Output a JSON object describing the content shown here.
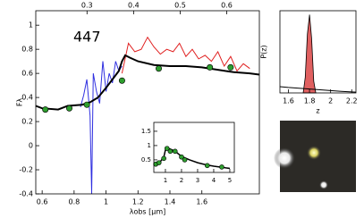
{
  "chart_data": [
    {
      "type": "line",
      "annotation": "447",
      "xlabel": "λobs [μm]",
      "ylabel": "Fλ",
      "xlim": [
        0.56,
        1.96
      ],
      "xticks": [
        0.6,
        0.8,
        1.0,
        1.2,
        1.4,
        1.6
      ],
      "x2lim": [
        0.19,
        0.67
      ],
      "x2ticks": [
        0.3,
        0.4,
        0.5,
        0.6
      ],
      "ylim": [
        -0.4,
        1.12
      ],
      "yticks": [
        -0.4,
        -0.2,
        0.0,
        0.2,
        0.4,
        0.6,
        0.8,
        1.0
      ],
      "series": [
        {
          "style": "line",
          "color": "#3030e0",
          "width": 1,
          "x": [
            0.84,
            0.86,
            0.88,
            0.9,
            0.91,
            0.92,
            0.94,
            0.96,
            0.98,
            1.0,
            1.02,
            1.04,
            1.06,
            1.08,
            1.1
          ],
          "values": [
            0.32,
            0.42,
            0.55,
            0.25,
            -0.4,
            0.6,
            0.45,
            0.35,
            0.7,
            0.45,
            0.6,
            0.52,
            0.7,
            0.62,
            0.66
          ]
        },
        {
          "style": "line",
          "color": "#e02020",
          "width": 1,
          "x": [
            1.1,
            1.14,
            1.18,
            1.22,
            1.26,
            1.3,
            1.34,
            1.38,
            1.42,
            1.46,
            1.5,
            1.54,
            1.58,
            1.62,
            1.66,
            1.7,
            1.74,
            1.78,
            1.82,
            1.86,
            1.9
          ],
          "values": [
            0.6,
            0.85,
            0.78,
            0.8,
            0.9,
            0.82,
            0.76,
            0.8,
            0.78,
            0.85,
            0.74,
            0.8,
            0.72,
            0.75,
            0.7,
            0.78,
            0.66,
            0.74,
            0.62,
            0.68,
            0.64
          ]
        },
        {
          "style": "line",
          "color": "#000000",
          "width": 2,
          "x": [
            0.56,
            0.6,
            0.7,
            0.76,
            0.85,
            0.9,
            0.95,
            1.0,
            1.04,
            1.08,
            1.1,
            1.12,
            1.15,
            1.2,
            1.3,
            1.4,
            1.5,
            1.6,
            1.7,
            1.8,
            1.9,
            1.96
          ],
          "values": [
            0.33,
            0.31,
            0.3,
            0.33,
            0.34,
            0.36,
            0.4,
            0.48,
            0.55,
            0.62,
            0.7,
            0.75,
            0.73,
            0.7,
            0.67,
            0.66,
            0.66,
            0.65,
            0.63,
            0.61,
            0.6,
            0.59
          ]
        },
        {
          "style": "points",
          "color": "#2e9e2e",
          "x": [
            0.62,
            0.77,
            0.88,
            1.1,
            1.33,
            1.65,
            1.78
          ],
          "values": [
            0.3,
            0.31,
            0.34,
            0.54,
            0.64,
            0.65,
            0.65
          ]
        }
      ]
    },
    {
      "type": "line",
      "xlim": [
        0.28,
        5.28
      ],
      "xticks": [
        1,
        2,
        3,
        4,
        5
      ],
      "ylim": [
        0.06,
        1.81
      ],
      "yticks": [
        0.5,
        1.0,
        1.5
      ],
      "series": [
        {
          "style": "line",
          "color": "#000000",
          "width": 1.5,
          "x": [
            0.3,
            0.5,
            0.7,
            0.9,
            1.0,
            1.1,
            1.3,
            1.6,
            2.0,
            2.5,
            3.0,
            3.5,
            4.0,
            4.5,
            5.0
          ],
          "values": [
            0.4,
            0.38,
            0.45,
            0.6,
            0.85,
            0.9,
            0.88,
            0.8,
            0.62,
            0.5,
            0.4,
            0.33,
            0.28,
            0.24,
            0.2
          ]
        },
        {
          "style": "points",
          "color": "#2e9e2e",
          "x": [
            0.4,
            0.6,
            0.9,
            1.1,
            1.3,
            1.6,
            2.0,
            2.2,
            3.6,
            4.5
          ],
          "values": [
            0.35,
            0.4,
            0.55,
            0.9,
            0.8,
            0.8,
            0.6,
            0.5,
            0.3,
            0.25
          ]
        }
      ]
    },
    {
      "type": "area",
      "xlabel": "z",
      "ylabel": "P(z)",
      "xlim": [
        1.52,
        2.24
      ],
      "xticks": [
        1.6,
        1.8,
        2.0,
        2.2
      ],
      "ylim": [
        0,
        1.05
      ],
      "series": [
        {
          "style": "area",
          "color": "#e06060",
          "x": [
            1.74,
            1.76,
            1.78,
            1.8,
            1.82,
            1.84,
            1.86
          ],
          "values": [
            0.0,
            0.2,
            0.75,
            1.0,
            0.7,
            0.15,
            0.0
          ]
        },
        {
          "style": "line",
          "color": "#000000",
          "width": 1,
          "x": [
            1.52,
            1.6,
            1.7,
            1.8,
            1.9,
            2.0,
            2.1,
            2.24
          ],
          "values": [
            0.08,
            0.07,
            0.06,
            0.05,
            0.04,
            0.03,
            0.02,
            0.01
          ]
        }
      ]
    }
  ]
}
